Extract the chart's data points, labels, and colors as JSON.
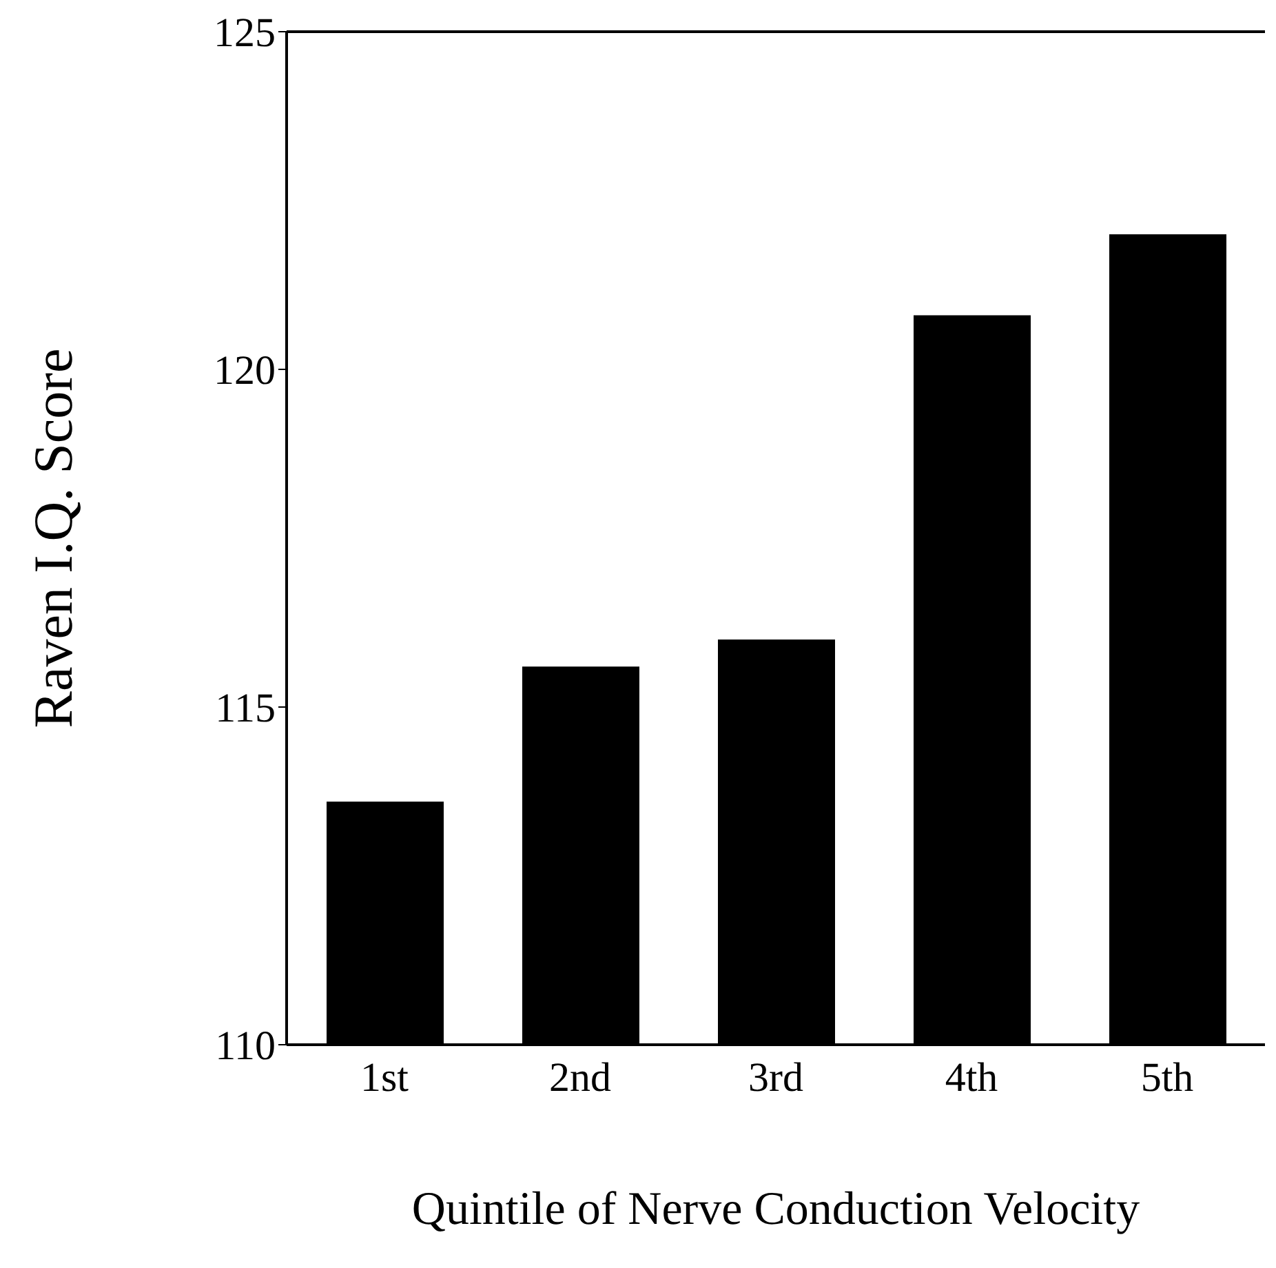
{
  "chart_data": {
    "type": "bar",
    "xlabel": "Quintile of Nerve Conduction Velocity",
    "ylabel": "Raven I.Q. Score",
    "categories": [
      "1st",
      "2nd",
      "3rd",
      "4th",
      "5th"
    ],
    "values": [
      113.6,
      115.6,
      116.0,
      120.8,
      122.0
    ],
    "color": "#000000",
    "ylim": [
      110,
      125
    ],
    "yticks": [
      110,
      115,
      120,
      125
    ],
    "grid": false,
    "legend": false
  }
}
